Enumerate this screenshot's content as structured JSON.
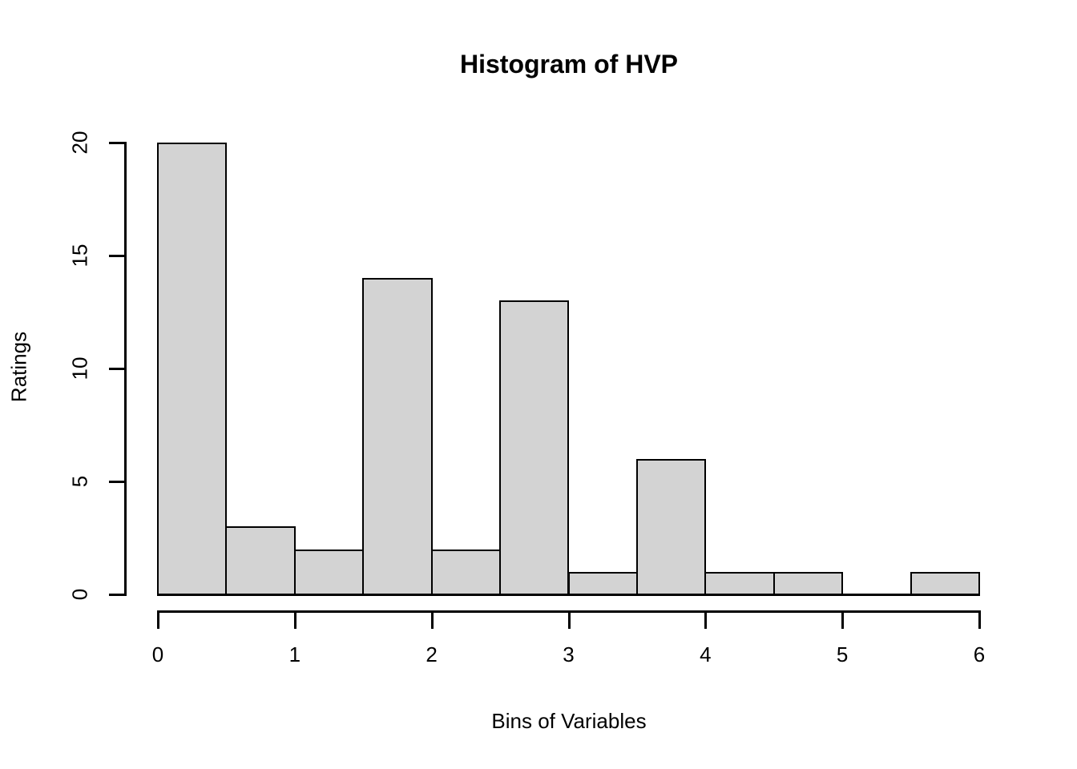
{
  "chart_data": {
    "type": "bar",
    "subtype": "histogram",
    "title": "Histogram of HVP",
    "xlabel": "Bins of Variables",
    "ylabel": "Ratings",
    "xlim": [
      0,
      6
    ],
    "ylim": [
      0,
      20
    ],
    "bin_width": 0.5,
    "bin_edges": [
      0,
      0.5,
      1,
      1.5,
      2,
      2.5,
      3,
      3.5,
      4,
      4.5,
      5,
      5.5,
      6
    ],
    "counts": [
      20,
      3,
      2,
      14,
      2,
      13,
      1,
      6,
      1,
      1,
      0,
      1
    ],
    "x_ticks": [
      "0",
      "1",
      "2",
      "3",
      "4",
      "5",
      "6"
    ],
    "x_tick_values": [
      0,
      1,
      2,
      3,
      4,
      5,
      6
    ],
    "y_ticks": [
      "0",
      "5",
      "10",
      "15",
      "20"
    ],
    "y_tick_values": [
      0,
      5,
      10,
      15,
      20
    ],
    "grid": false,
    "legend_position": "none",
    "bar_fill_color": "#d3d3d3",
    "bar_border_color": "#000000",
    "axis_color": "#000000",
    "text_color": "#000000",
    "background_color": "#ffffff"
  }
}
